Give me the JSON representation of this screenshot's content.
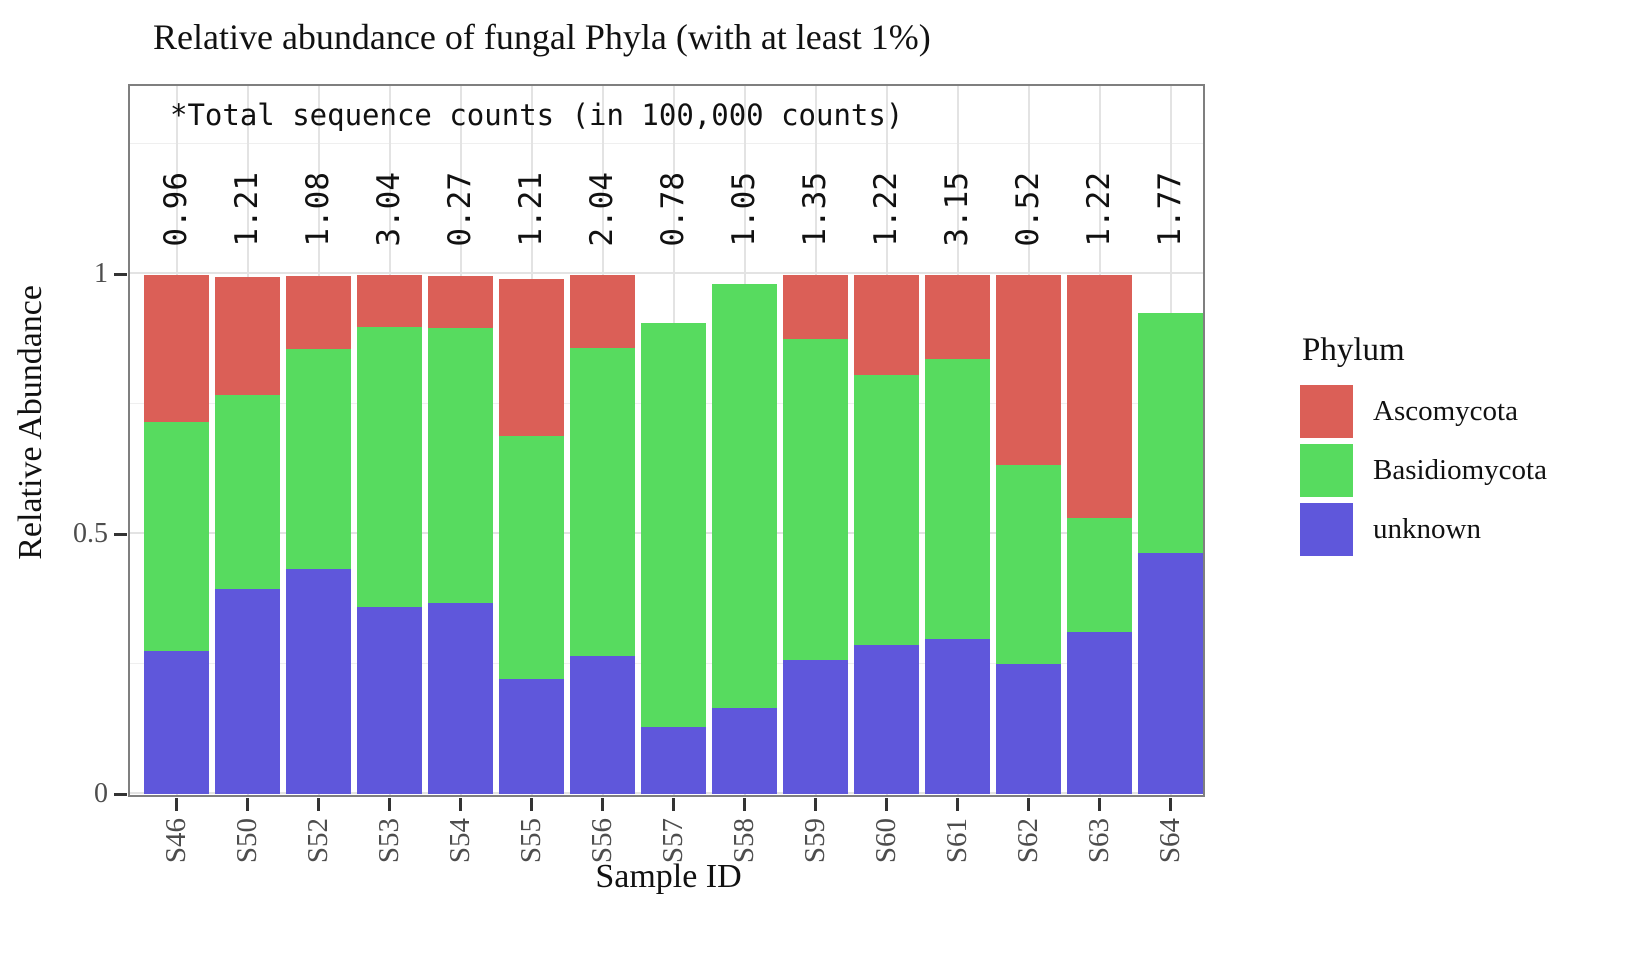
{
  "title": "Relative abundance of fungal Phyla (with at least 1%)",
  "panel_note": "*Total sequence counts (in 100,000 counts)",
  "axes": {
    "x_label": "Sample ID",
    "y_label": "Relative Abundance",
    "y_ticks": [
      {
        "value": 1,
        "label": "1"
      },
      {
        "value": 0.5,
        "label": "0.5"
      },
      {
        "value": 0,
        "label": "0"
      }
    ]
  },
  "legend": {
    "title": "Phylum",
    "entries": [
      {
        "label": "Ascomycota",
        "color": "#DB5F57"
      },
      {
        "label": "Basidiomycota",
        "color": "#57DB5F"
      },
      {
        "label": "unknown",
        "color": "#5F57DB"
      }
    ]
  },
  "chart_data": {
    "type": "bar",
    "stacked": true,
    "title": "Relative abundance of fungal Phyla (with at least 1%)",
    "xlabel": "Sample ID",
    "ylabel": "Relative Abundance",
    "categories": [
      "S46",
      "S50",
      "S52",
      "S53",
      "S54",
      "S55",
      "S56",
      "S57",
      "S58",
      "S59",
      "S60",
      "S61",
      "S62",
      "S63",
      "S64"
    ],
    "bar_total_labels": [
      "0.96",
      "1.21",
      "1.08",
      "3.04",
      "0.27",
      "1.21",
      "2.04",
      "0.78",
      "1.05",
      "1.35",
      "1.22",
      "3.15",
      "0.52",
      "1.22",
      "1.77"
    ],
    "bar_total_labels_note": "*Total sequence counts (in 100,000 counts)",
    "series": [
      {
        "name": "Ascomycota",
        "color": "#DB5F57",
        "values": [
          0.283,
          0.228,
          0.14,
          0.1,
          0.1,
          0.302,
          0.14,
          0,
          0,
          0.123,
          0.192,
          0.161,
          0.365,
          0.468,
          0
        ]
      },
      {
        "name": "Basidiomycota",
        "color": "#57DB5F",
        "values": [
          0.44,
          0.373,
          0.423,
          0.538,
          0.53,
          0.467,
          0.593,
          0.777,
          0.816,
          0.618,
          0.519,
          0.539,
          0.383,
          0.218,
          0.461
        ]
      },
      {
        "name": "unknown",
        "color": "#5F57DB",
        "values": [
          0.275,
          0.394,
          0.433,
          0.36,
          0.367,
          0.221,
          0.265,
          0.129,
          0.165,
          0.257,
          0.287,
          0.298,
          0.25,
          0.312,
          0.464
        ]
      }
    ],
    "ylim": [
      0,
      1.37
    ],
    "y_major_gridlines": [
      0,
      0.5,
      1
    ],
    "y_minor_gridlines": [
      0.25,
      0.75,
      1.25
    ],
    "grid": true,
    "legend_position": "right"
  }
}
